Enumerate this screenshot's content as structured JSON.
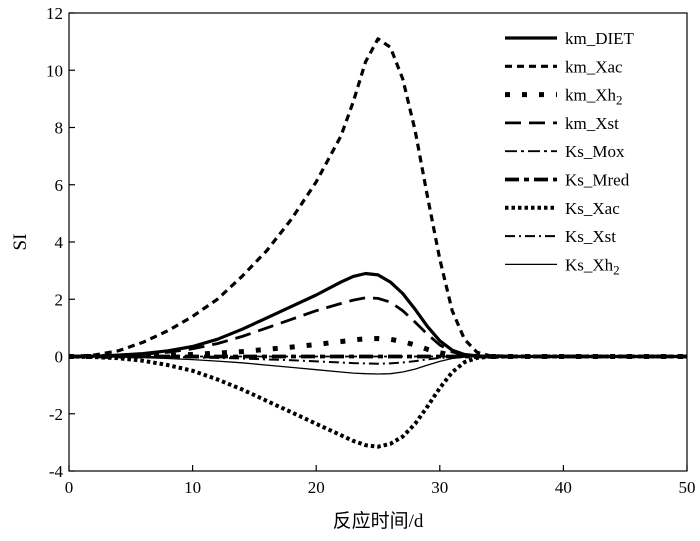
{
  "chart_data": {
    "type": "line",
    "xlabel": "反应时间/d",
    "ylabel": "SI",
    "xlim": [
      0,
      50
    ],
    "ylim": [
      -4,
      12
    ],
    "xticks": [
      0,
      10,
      20,
      30,
      40,
      50
    ],
    "yticks": [
      -4,
      -2,
      0,
      2,
      4,
      6,
      8,
      10,
      12
    ],
    "grid": false,
    "legend_position": "top-right",
    "x": [
      0,
      2,
      4,
      6,
      8,
      10,
      12,
      14,
      16,
      18,
      20,
      22,
      23,
      24,
      25,
      26,
      27,
      28,
      29,
      30,
      31,
      32,
      33,
      34,
      36,
      40,
      45,
      50
    ],
    "series": [
      {
        "name": "km_DIET",
        "legend_sub": "",
        "style": "solid-thick",
        "values": [
          0,
          0.01,
          0.05,
          0.1,
          0.2,
          0.35,
          0.6,
          0.95,
          1.35,
          1.75,
          2.15,
          2.6,
          2.8,
          2.9,
          2.85,
          2.6,
          2.2,
          1.65,
          1.05,
          0.55,
          0.22,
          0.07,
          0.02,
          0,
          0,
          0,
          0,
          0
        ]
      },
      {
        "name": "km_Xac",
        "legend_sub": "",
        "style": "dashed-short",
        "values": [
          0,
          0.05,
          0.2,
          0.5,
          0.9,
          1.4,
          2.0,
          2.8,
          3.7,
          4.8,
          6.1,
          7.7,
          8.9,
          10.3,
          11.1,
          10.8,
          9.7,
          7.9,
          5.6,
          3.4,
          1.6,
          0.6,
          0.15,
          0.03,
          0,
          0,
          0,
          0
        ]
      },
      {
        "name": "km_Xh",
        "legend_sub": "2",
        "style": "dotted-heavy",
        "values": [
          0,
          0,
          0.01,
          0.02,
          0.04,
          0.07,
          0.12,
          0.17,
          0.25,
          0.33,
          0.42,
          0.52,
          0.58,
          0.62,
          0.63,
          0.6,
          0.52,
          0.4,
          0.25,
          0.13,
          0.05,
          0.02,
          0,
          0,
          0,
          0,
          0,
          0
        ]
      },
      {
        "name": "km_Xst",
        "legend_sub": "",
        "style": "dashed-long",
        "values": [
          0,
          0.01,
          0.04,
          0.08,
          0.15,
          0.27,
          0.45,
          0.7,
          1.0,
          1.3,
          1.6,
          1.85,
          1.97,
          2.05,
          2.03,
          1.9,
          1.6,
          1.2,
          0.78,
          0.4,
          0.16,
          0.05,
          0.01,
          0,
          0,
          0,
          0,
          0
        ]
      },
      {
        "name": "Ks_Mox",
        "legend_sub": "",
        "style": "dashdot",
        "values": [
          0,
          0,
          0,
          0,
          0,
          0,
          0,
          0,
          0,
          0,
          0,
          0,
          0,
          0,
          0,
          0,
          0,
          0,
          0,
          0,
          0,
          0,
          0,
          0,
          0,
          0,
          0,
          0
        ]
      },
      {
        "name": "Ks_Mred",
        "legend_sub": "",
        "style": "dashdot-thick",
        "values": [
          0,
          0,
          0,
          0,
          0,
          0,
          0,
          0,
          0,
          0,
          0,
          0,
          0,
          0,
          0,
          0,
          0,
          0,
          0,
          0,
          0,
          0,
          0,
          0,
          0,
          0,
          0,
          0
        ]
      },
      {
        "name": "Ks_Xac",
        "legend_sub": "",
        "style": "dotted-dense",
        "values": [
          0,
          -0.02,
          -0.06,
          -0.15,
          -0.3,
          -0.5,
          -0.8,
          -1.15,
          -1.55,
          -1.95,
          -2.35,
          -2.75,
          -2.95,
          -3.1,
          -3.15,
          -3.05,
          -2.8,
          -2.35,
          -1.75,
          -1.1,
          -0.55,
          -0.2,
          -0.05,
          -0.01,
          0,
          0,
          0,
          0
        ]
      },
      {
        "name": "Ks_Xst",
        "legend_sub": "",
        "style": "dashdot-thin",
        "values": [
          0,
          0,
          0,
          -0.01,
          -0.02,
          -0.03,
          -0.05,
          -0.07,
          -0.1,
          -0.13,
          -0.17,
          -0.21,
          -0.23,
          -0.24,
          -0.25,
          -0.24,
          -0.21,
          -0.16,
          -0.1,
          -0.05,
          -0.02,
          0,
          0,
          0,
          0,
          0,
          0,
          0
        ]
      },
      {
        "name": "Ks_Xh",
        "legend_sub": "2",
        "style": "solid-thin",
        "values": [
          0,
          -0.01,
          -0.02,
          -0.04,
          -0.07,
          -0.11,
          -0.16,
          -0.22,
          -0.3,
          -0.38,
          -0.46,
          -0.54,
          -0.58,
          -0.6,
          -0.61,
          -0.6,
          -0.54,
          -0.44,
          -0.3,
          -0.17,
          -0.07,
          -0.02,
          0,
          0,
          0,
          0,
          0,
          0
        ]
      }
    ]
  }
}
